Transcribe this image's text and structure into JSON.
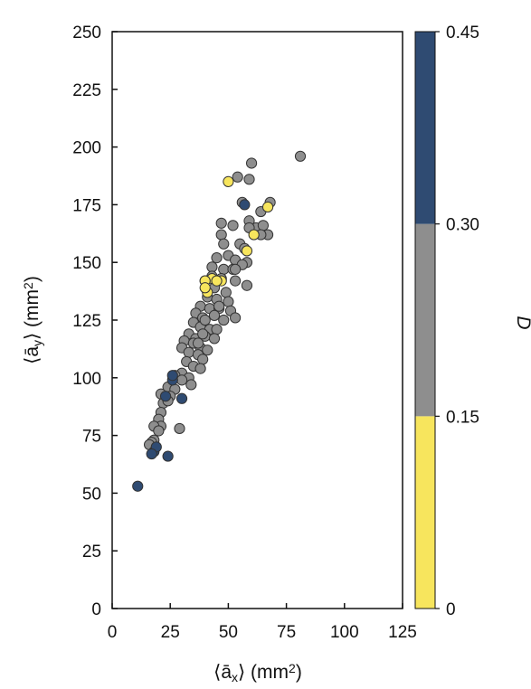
{
  "chart_data": {
    "type": "scatter",
    "title": "",
    "xlabel": "⟨ā",
    "xlabel_sub": "x",
    "xlabel_tail": "⟩ (mm",
    "xlabel_sup": "2",
    "ylabel": "⟨ā",
    "ylabel_sub": "y",
    "ylabel_tail": "⟩ (mm",
    "ylabel_sup": "2",
    "xlim": [
      0,
      125
    ],
    "ylim": [
      0,
      250
    ],
    "xticks": [
      "0",
      "25",
      "50",
      "75",
      "100",
      "125"
    ],
    "yticks": [
      "0",
      "25",
      "50",
      "75",
      "100",
      "125",
      "150",
      "175",
      "200",
      "225",
      "250"
    ],
    "grid": false,
    "colorbar": {
      "label": "D",
      "range": [
        0,
        0.45
      ],
      "ticks": [
        "0",
        "0.15",
        "0.30",
        "0.45"
      ],
      "bins": [
        {
          "from": 0,
          "to": 0.15,
          "color": "#f7e55d"
        },
        {
          "from": 0.15,
          "to": 0.3,
          "color": "#8e8e8e"
        },
        {
          "from": 0.3,
          "to": 0.45,
          "color": "#2f4b72"
        }
      ]
    },
    "point_colors": {
      "low": "#f7e55d",
      "mid": "#8e8e8e",
      "high": "#2f4b72"
    },
    "series": [
      {
        "d_class": "mid",
        "points": [
          [
            81,
            196
          ],
          [
            60,
            193
          ],
          [
            54,
            187
          ],
          [
            59,
            186
          ],
          [
            56,
            176
          ],
          [
            64,
            172
          ],
          [
            68,
            176
          ],
          [
            62,
            165
          ],
          [
            65,
            166
          ],
          [
            67,
            162
          ],
          [
            59,
            168
          ],
          [
            59,
            165
          ],
          [
            47,
            167
          ],
          [
            52,
            166
          ],
          [
            47,
            162
          ],
          [
            48,
            158
          ],
          [
            55,
            158
          ],
          [
            57,
            156
          ],
          [
            64,
            162
          ],
          [
            45,
            152
          ],
          [
            50,
            153
          ],
          [
            53,
            151
          ],
          [
            58,
            150
          ],
          [
            43,
            148
          ],
          [
            48,
            147
          ],
          [
            52,
            147
          ],
          [
            56,
            149
          ],
          [
            43,
            144
          ],
          [
            47,
            143
          ],
          [
            53,
            142
          ],
          [
            58,
            140
          ],
          [
            40,
            142
          ],
          [
            44,
            139
          ],
          [
            49,
            137
          ],
          [
            41,
            135
          ],
          [
            45,
            134
          ],
          [
            50,
            133
          ],
          [
            38,
            131
          ],
          [
            42,
            130
          ],
          [
            46,
            130
          ],
          [
            51,
            129
          ],
          [
            53,
            126
          ],
          [
            36,
            128
          ],
          [
            39,
            126
          ],
          [
            44,
            127
          ],
          [
            48,
            125
          ],
          [
            35,
            124
          ],
          [
            38,
            122
          ],
          [
            42,
            121
          ],
          [
            45,
            121
          ],
          [
            33,
            119
          ],
          [
            36,
            117
          ],
          [
            40,
            118
          ],
          [
            44,
            117
          ],
          [
            31,
            116
          ],
          [
            35,
            115
          ],
          [
            38,
            113
          ],
          [
            41,
            112
          ],
          [
            30,
            113
          ],
          [
            33,
            111
          ],
          [
            37,
            110
          ],
          [
            39,
            108
          ],
          [
            32,
            107
          ],
          [
            35,
            105
          ],
          [
            38,
            104
          ],
          [
            30,
            102
          ],
          [
            33,
            100
          ],
          [
            27,
            101
          ],
          [
            30,
            99
          ],
          [
            34,
            97
          ],
          [
            24,
            96
          ],
          [
            27,
            95
          ],
          [
            25,
            92
          ],
          [
            21,
            93
          ],
          [
            22,
            89
          ],
          [
            24,
            90
          ],
          [
            21,
            85
          ],
          [
            20,
            82
          ],
          [
            21,
            79
          ],
          [
            18,
            79
          ],
          [
            20,
            77
          ],
          [
            18,
            73
          ],
          [
            17,
            72
          ],
          [
            16,
            71
          ],
          [
            29,
            78
          ],
          [
            40,
            125
          ],
          [
            39,
            119
          ],
          [
            37,
            115
          ],
          [
            46,
            131
          ],
          [
            53,
            147
          ]
        ]
      },
      {
        "d_class": "low",
        "points": [
          [
            50,
            185
          ],
          [
            67,
            174
          ],
          [
            61,
            162
          ],
          [
            58,
            155
          ],
          [
            43,
            143
          ],
          [
            47,
            142
          ],
          [
            40,
            142
          ],
          [
            41,
            137
          ],
          [
            40,
            139
          ],
          [
            45,
            142
          ]
        ]
      },
      {
        "d_class": "high",
        "points": [
          [
            57,
            175
          ],
          [
            11,
            53
          ],
          [
            18,
            68
          ],
          [
            24,
            66
          ],
          [
            19,
            70
          ],
          [
            23,
            92
          ],
          [
            30,
            91
          ],
          [
            26,
            99
          ],
          [
            26,
            101
          ],
          [
            17,
            67
          ]
        ]
      }
    ]
  }
}
